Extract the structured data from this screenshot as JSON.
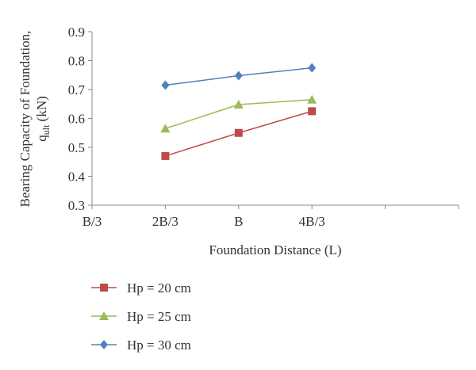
{
  "chart_data": {
    "type": "line",
    "categories": [
      "B/3",
      "2B/3",
      "B",
      "4B/3"
    ],
    "x_axis_extra_slot": true,
    "ylim": [
      0.3,
      0.9
    ],
    "yticks": [
      "0.9",
      "0.8",
      "0.7",
      "0.6",
      "0.5",
      "0.4",
      "0.3"
    ],
    "xlabel": "Foundation Distance (L)",
    "ylabel_line1": "Bearing Capacity of Foundation,",
    "ylabel_line2_prefix": "q",
    "ylabel_line2_sub": "ult",
    "ylabel_line2_suffix": " (kN)",
    "grid": false,
    "legend_position": "bottom-left",
    "series": [
      {
        "name": "Hp = 20 cm",
        "color": "#be4b48",
        "marker": "square",
        "values": [
          null,
          0.47,
          0.55,
          0.625
        ]
      },
      {
        "name": "Hp = 25 cm",
        "color": "#9bbb59",
        "marker": "triangle",
        "values": [
          null,
          0.565,
          0.648,
          0.665
        ]
      },
      {
        "name": "Hp = 30 cm",
        "color": "#4f81bd",
        "marker": "diamond",
        "values": [
          null,
          0.715,
          0.748,
          0.775
        ]
      }
    ]
  }
}
